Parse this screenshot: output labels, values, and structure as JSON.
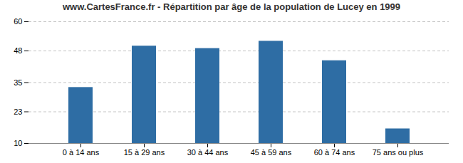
{
  "chart_data": {
    "type": "bar",
    "title": "www.CartesFrance.fr - Répartition par âge de la population de Lucey en 1999",
    "categories": [
      "0 à 14 ans",
      "15 à 29 ans",
      "30 à 44 ans",
      "45 à 59 ans",
      "60 à 74 ans",
      "75 ans ou plus"
    ],
    "values": [
      33,
      50,
      49,
      52,
      44,
      16
    ],
    "color": "#2E6DA4",
    "ylim": [
      10,
      60
    ],
    "yticks": [
      10,
      23,
      35,
      48,
      60
    ],
    "grid": true
  }
}
